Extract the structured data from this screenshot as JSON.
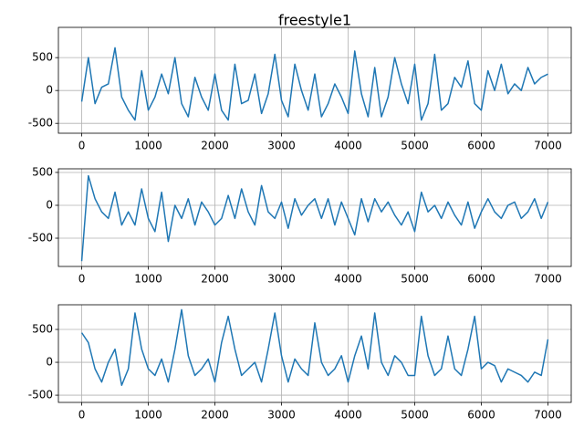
{
  "chart_data": [
    {
      "type": "line",
      "title": "freestyle1",
      "color": "#1f77b4",
      "grid": true,
      "x": [
        0,
        100,
        200,
        300,
        400,
        500,
        600,
        700,
        800,
        900,
        1000,
        1100,
        1200,
        1300,
        1400,
        1500,
        1600,
        1700,
        1800,
        1900,
        2000,
        2100,
        2200,
        2300,
        2400,
        2500,
        2600,
        2700,
        2800,
        2900,
        3000,
        3100,
        3200,
        3300,
        3400,
        3500,
        3600,
        3700,
        3800,
        3900,
        4000,
        4100,
        4200,
        4300,
        4400,
        4500,
        4600,
        4700,
        4800,
        4900,
        5000,
        5100,
        5200,
        5300,
        5400,
        5500,
        5600,
        5700,
        5800,
        5900,
        6000,
        6100,
        6200,
        6300,
        6400,
        6500,
        6600,
        6700,
        6800,
        6900,
        7000
      ],
      "values": [
        -170,
        500,
        -200,
        50,
        100,
        650,
        -100,
        -300,
        -450,
        300,
        -300,
        -100,
        250,
        -50,
        500,
        -200,
        -400,
        200,
        -100,
        -300,
        250,
        -300,
        -450,
        400,
        -200,
        -150,
        250,
        -350,
        -50,
        550,
        -150,
        -400,
        400,
        0,
        -300,
        250,
        -400,
        -200,
        100,
        -100,
        -350,
        600,
        -50,
        -400,
        350,
        -400,
        -100,
        500,
        100,
        -200,
        400,
        -450,
        -200,
        550,
        -300,
        -200,
        200,
        50,
        450,
        -200,
        -300,
        300,
        0,
        400,
        -50,
        100,
        0,
        350,
        100,
        200,
        250
      ],
      "xlim": [
        -350,
        7350
      ],
      "ylim": [
        -650,
        960
      ],
      "xticks": [
        0,
        1000,
        2000,
        3000,
        4000,
        5000,
        6000,
        7000
      ],
      "yticks": [
        -500,
        0,
        500
      ]
    },
    {
      "type": "line",
      "color": "#1f77b4",
      "grid": true,
      "x": [
        0,
        100,
        200,
        300,
        400,
        500,
        600,
        700,
        800,
        900,
        1000,
        1100,
        1200,
        1300,
        1400,
        1500,
        1600,
        1700,
        1800,
        1900,
        2000,
        2100,
        2200,
        2300,
        2400,
        2500,
        2600,
        2700,
        2800,
        2900,
        3000,
        3100,
        3200,
        3300,
        3400,
        3500,
        3600,
        3700,
        3800,
        3900,
        4000,
        4100,
        4200,
        4300,
        4400,
        4500,
        4600,
        4700,
        4800,
        4900,
        5000,
        5100,
        5200,
        5300,
        5400,
        5500,
        5600,
        5700,
        5800,
        5900,
        6000,
        6100,
        6200,
        6300,
        6400,
        6500,
        6600,
        6700,
        6800,
        6900,
        7000
      ],
      "values": [
        -850,
        450,
        100,
        -100,
        -200,
        200,
        -300,
        -100,
        -300,
        250,
        -200,
        -400,
        200,
        -550,
        0,
        -200,
        100,
        -300,
        50,
        -100,
        -300,
        -200,
        150,
        -200,
        250,
        -100,
        -300,
        300,
        -100,
        -200,
        50,
        -350,
        100,
        -150,
        0,
        100,
        -200,
        100,
        -300,
        50,
        -200,
        -450,
        100,
        -250,
        100,
        -100,
        50,
        -150,
        -300,
        -100,
        -400,
        200,
        -100,
        0,
        -200,
        50,
        -150,
        -300,
        50,
        -350,
        -100,
        100,
        -100,
        -200,
        0,
        50,
        -200,
        -100,
        100,
        -200,
        50
      ],
      "xlim": [
        -350,
        7350
      ],
      "ylim": [
        -930,
        555
      ],
      "xticks": [
        0,
        1000,
        2000,
        3000,
        4000,
        5000,
        6000,
        7000
      ],
      "yticks": [
        -500,
        0,
        500
      ]
    },
    {
      "type": "line",
      "color": "#1f77b4",
      "grid": true,
      "x": [
        0,
        100,
        200,
        300,
        400,
        500,
        600,
        700,
        800,
        900,
        1000,
        1100,
        1200,
        1300,
        1400,
        1500,
        1600,
        1700,
        1800,
        1900,
        2000,
        2100,
        2200,
        2300,
        2400,
        2500,
        2600,
        2700,
        2800,
        2900,
        3000,
        3100,
        3200,
        3300,
        3400,
        3500,
        3600,
        3700,
        3800,
        3900,
        4000,
        4100,
        4200,
        4300,
        4400,
        4500,
        4600,
        4700,
        4800,
        4900,
        5000,
        5100,
        5200,
        5300,
        5400,
        5500,
        5600,
        5700,
        5800,
        5900,
        6000,
        6100,
        6200,
        6300,
        6400,
        6500,
        6600,
        6700,
        6800,
        6900,
        7000
      ],
      "values": [
        450,
        300,
        -100,
        -300,
        0,
        200,
        -350,
        -100,
        750,
        200,
        -100,
        -200,
        50,
        -300,
        200,
        800,
        100,
        -200,
        -100,
        50,
        -300,
        300,
        700,
        200,
        -200,
        -100,
        0,
        -300,
        200,
        750,
        100,
        -300,
        50,
        -100,
        -200,
        600,
        0,
        -200,
        -100,
        100,
        -300,
        100,
        400,
        -100,
        750,
        0,
        -200,
        100,
        0,
        -200,
        -200,
        700,
        100,
        -200,
        -100,
        400,
        -100,
        -200,
        200,
        700,
        -100,
        0,
        -50,
        -300,
        -100,
        -150,
        -200,
        -300,
        -150,
        -200,
        350
      ],
      "xlim": [
        -350,
        7350
      ],
      "ylim": [
        -610,
        875
      ],
      "xticks": [
        0,
        1000,
        2000,
        3000,
        4000,
        5000,
        6000,
        7000
      ],
      "yticks": [
        -500,
        0,
        500
      ]
    }
  ]
}
